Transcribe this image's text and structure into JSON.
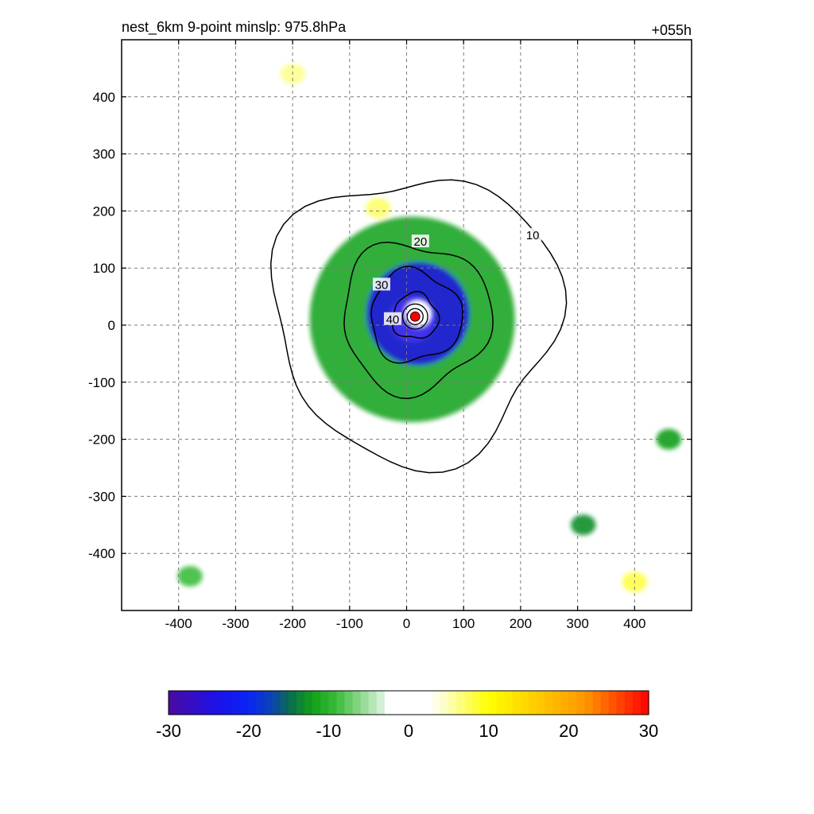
{
  "header": {
    "title_left": "nest_6km  9-point minslp: 975.8hPa",
    "title_right": "+055h"
  },
  "chart_data": {
    "type": "heatmap",
    "title": "nest_6km  9-point minslp: 975.8hPa",
    "forecast_hour_label": "+055h",
    "xlabel": "",
    "ylabel": "",
    "xlim": [
      -500,
      500
    ],
    "ylim": [
      -500,
      500
    ],
    "x_ticks": [
      -400,
      -300,
      -200,
      -100,
      0,
      100,
      200,
      300,
      400
    ],
    "y_ticks": [
      -400,
      -300,
      -200,
      -100,
      0,
      100,
      200,
      300,
      400
    ],
    "grid": true,
    "center_marker": {
      "x": 15,
      "y": 15,
      "color": "#ff0000"
    },
    "shaded_field": {
      "range": [
        -30,
        30
      ],
      "dominant_sign": "negative (green/blue) in an annular rainband ring, strongest (about -25) just around the centre at radius 20-100",
      "features": [
        {
          "kind": "ring",
          "center": [
            10,
            10
          ],
          "r_inner": 40,
          "r_outer": 180,
          "value": -12
        },
        {
          "kind": "ring",
          "center": [
            20,
            20
          ],
          "r_inner": 25,
          "r_outer": 90,
          "value": -24
        },
        {
          "kind": "blob",
          "x": 310,
          "y": -350,
          "value": -13
        },
        {
          "kind": "blob",
          "x": 460,
          "y": -200,
          "value": -12
        },
        {
          "kind": "blob",
          "x": -380,
          "y": -440,
          "value": -9
        },
        {
          "kind": "blob",
          "x": 400,
          "y": -450,
          "value": 8
        },
        {
          "kind": "blob",
          "x": -200,
          "y": 440,
          "value": 6
        },
        {
          "kind": "blob",
          "x": -50,
          "y": 205,
          "value": 7
        }
      ]
    },
    "contours": {
      "levels": [
        10,
        20,
        30,
        40
      ],
      "labels_shown": [
        "10",
        "20",
        "30",
        "40"
      ],
      "approx_radius_by_level": {
        "10": 250,
        "20": 130,
        "30": 80,
        "40": 40
      }
    },
    "colorbar": {
      "ticks": [
        -30,
        -20,
        -10,
        0,
        10,
        20,
        30
      ],
      "tick_labels": [
        "-30",
        "-20",
        "-10",
        "0",
        "10",
        "20",
        "30"
      ],
      "stops": [
        {
          "value": -30,
          "color": "#4b0aa0"
        },
        {
          "value": -24,
          "color": "#1c10e8"
        },
        {
          "value": -20,
          "color": "#0a24f5"
        },
        {
          "value": -17,
          "color": "#0a45b0"
        },
        {
          "value": -15,
          "color": "#0a6a4e"
        },
        {
          "value": -12,
          "color": "#12a018"
        },
        {
          "value": -9,
          "color": "#3cbc3c"
        },
        {
          "value": -6,
          "color": "#8cd88c"
        },
        {
          "value": -3.5,
          "color": "#d2f0d2"
        },
        {
          "value": -2.5,
          "color": "#ffffff"
        },
        {
          "value": 2.5,
          "color": "#ffffff"
        },
        {
          "value": 4,
          "color": "#fdfdd8"
        },
        {
          "value": 10,
          "color": "#ffff00"
        },
        {
          "value": 16,
          "color": "#ffcc00"
        },
        {
          "value": 22,
          "color": "#ff9600"
        },
        {
          "value": 30,
          "color": "#ff0000"
        }
      ]
    }
  }
}
